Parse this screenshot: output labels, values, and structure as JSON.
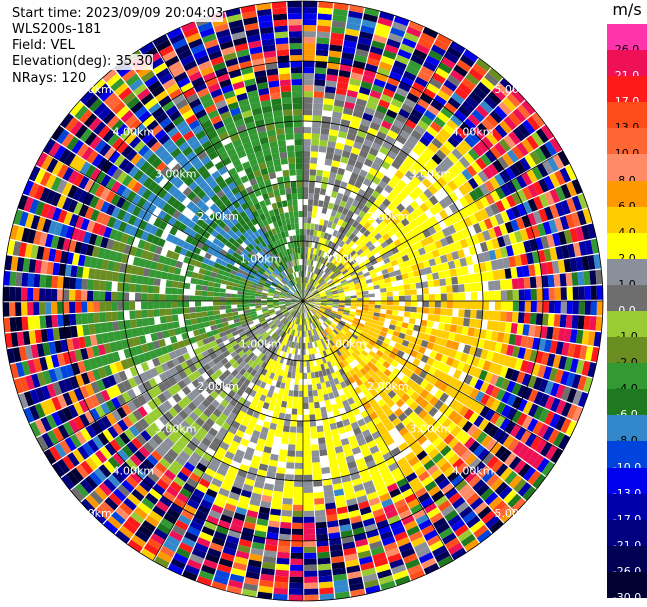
{
  "header": {
    "start_time": "Start time: 2023/09/09 20:04:03",
    "station": "WLS200s-181",
    "field": "Field: VEL",
    "elevation": "Elevation(deg): 35.30",
    "nrays": "NRays: 120"
  },
  "colorbar": {
    "unit": "m/s",
    "levels": [
      {
        "label": "26.0",
        "color": "#ff33aa"
      },
      {
        "label": "21.0",
        "color": "#ee1155"
      },
      {
        "label": "17.0",
        "color": "#ff1a1a"
      },
      {
        "label": "13.0",
        "color": "#ff4d1a"
      },
      {
        "label": "10.0",
        "color": "#ff6633"
      },
      {
        "label": "8.0",
        "color": "#ff8c66"
      },
      {
        "label": "6.0",
        "color": "#ff9900"
      },
      {
        "label": "4.0",
        "color": "#ffcc00"
      },
      {
        "label": "2.0",
        "color": "#ffff00"
      },
      {
        "label": "1.0",
        "color": "#8a8f99"
      },
      {
        "label": "0.0",
        "color": "#6e6e6e"
      },
      {
        "label": "-1.0",
        "color": "#99cc33"
      },
      {
        "label": "-2.0",
        "color": "#6b8e23"
      },
      {
        "label": "-4.0",
        "color": "#339933"
      },
      {
        "label": "-6.0",
        "color": "#1f7a1f"
      },
      {
        "label": "-8.0",
        "color": "#3388cc"
      },
      {
        "label": "-10.0",
        "color": "#0044dd"
      },
      {
        "label": "-13.0",
        "color": "#0000ee"
      },
      {
        "label": "-17.0",
        "color": "#0000aa"
      },
      {
        "label": "-21.0",
        "color": "#000080"
      },
      {
        "label": "-26.0",
        "color": "#000055"
      },
      {
        "label": "-30.0",
        "color": "#000033"
      }
    ]
  },
  "chart_data": {
    "type": "heatmap",
    "subtype": "radar-ppi",
    "field": "VEL",
    "units": "m/s",
    "nrays": 120,
    "max_range_km": 5.0,
    "range_rings_km": [
      1.0,
      2.0,
      3.0,
      4.0,
      5.0
    ],
    "range_labels": [
      "1.00km",
      "2.00km",
      "3.00km",
      "4.00km",
      "5.00km"
    ],
    "grid": true,
    "legend": "right",
    "clean_region_km": 3.2,
    "sectors": [
      {
        "from_deg": 0,
        "to_deg": 35,
        "value": 1.0
      },
      {
        "from_deg": 35,
        "to_deg": 90,
        "value": 3.0
      },
      {
        "from_deg": 90,
        "to_deg": 150,
        "value": 5.0
      },
      {
        "from_deg": 150,
        "to_deg": 210,
        "value": 2.5
      },
      {
        "from_deg": 210,
        "to_deg": 250,
        "value": 0.5
      },
      {
        "from_deg": 250,
        "to_deg": 290,
        "value": -2.5
      },
      {
        "from_deg": 290,
        "to_deg": 330,
        "value": -6.0
      },
      {
        "from_deg": 330,
        "to_deg": 360,
        "value": -3.0
      }
    ]
  }
}
